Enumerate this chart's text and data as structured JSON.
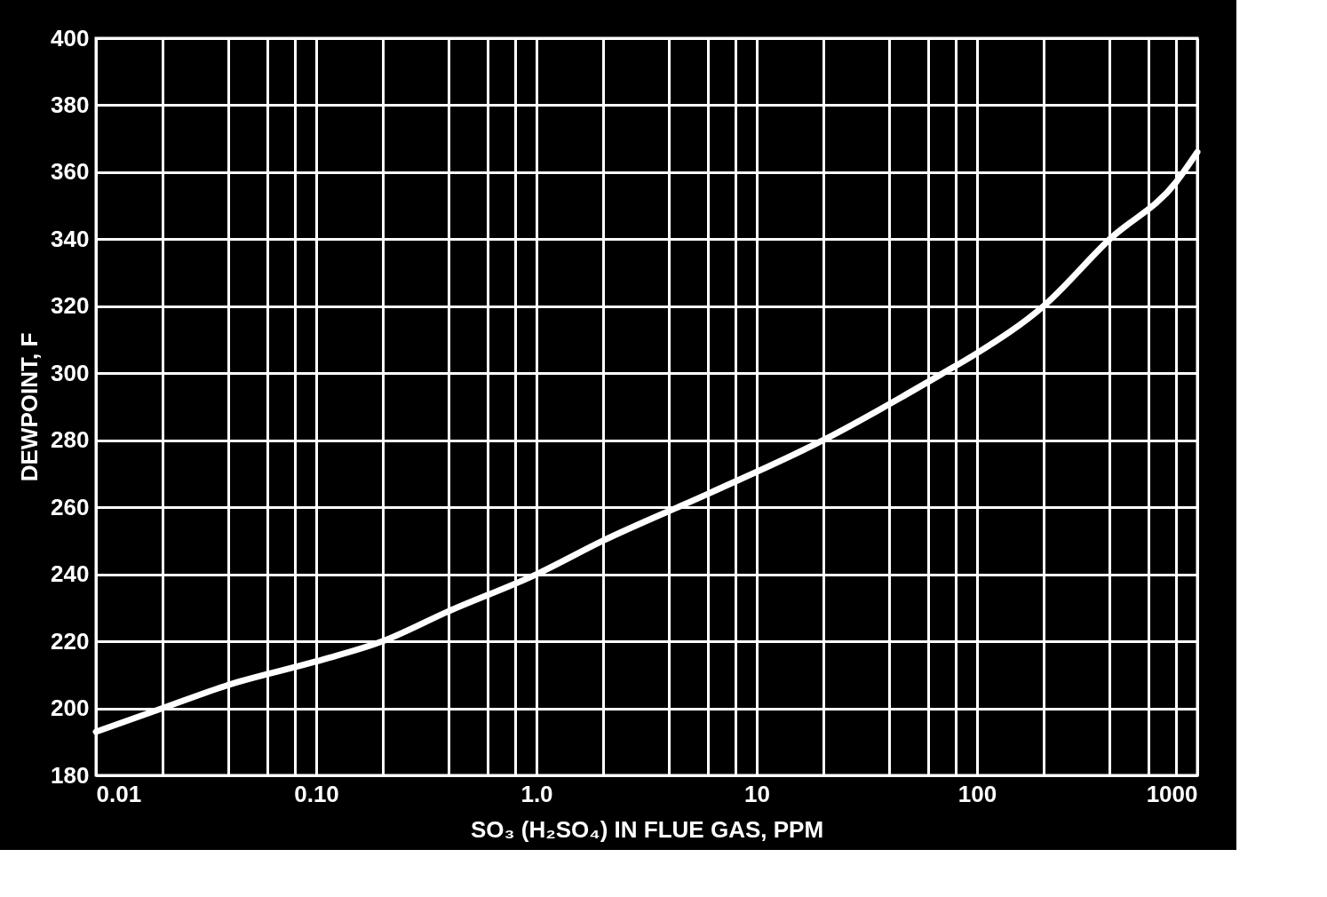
{
  "chart_data": {
    "type": "line",
    "xlabel": "SO₃ (H₂SO₄) IN FLUE GAS, PPM",
    "ylabel": "DEWPOINT, F",
    "log": "x",
    "grid": true,
    "marker": "none",
    "line_style": "solid",
    "xlim": [
      0.01,
      1000
    ],
    "xticks": [
      0.01,
      {
        "value": 0.02,
        "label": null
      },
      {
        "value": 0.04,
        "label": null
      },
      {
        "value": 0.06,
        "label": null
      },
      {
        "value": 0.08,
        "label": null
      },
      {
        "value": 0.1,
        "label": "0.10"
      },
      {
        "value": 0.2,
        "label": null
      },
      {
        "value": 0.4,
        "label": null
      },
      {
        "value": 0.6,
        "label": null
      },
      {
        "value": 0.8,
        "label": null
      },
      {
        "value": 1,
        "label": "1.0"
      },
      {
        "value": 2,
        "label": null
      },
      {
        "value": 4,
        "label": null
      },
      {
        "value": 6,
        "label": null
      },
      {
        "value": 8,
        "label": null
      },
      10,
      {
        "value": 20,
        "label": null
      },
      {
        "value": 40,
        "label": null
      },
      {
        "value": 60,
        "label": null
      },
      {
        "value": 80,
        "label": null
      },
      100,
      {
        "value": 200,
        "label": null
      },
      {
        "value": 400,
        "label": null
      },
      {
        "value": 600,
        "label": null
      },
      {
        "value": 800,
        "label": null
      },
      1000
    ],
    "ylim": [
      180,
      400
    ],
    "yticks": [
      180,
      200,
      220,
      240,
      260,
      280,
      300,
      320,
      340,
      360,
      380,
      400
    ],
    "series": [
      {
        "color": "#ffffff",
        "x": [
          0.01,
          0.02,
          0.04,
          0.1,
          0.2,
          0.4,
          1,
          2,
          6,
          20,
          70,
          100,
          200,
          400,
          800,
          1000
        ],
        "values": [
          193,
          200,
          207,
          214,
          220,
          229,
          240,
          250,
          264,
          280,
          300,
          306,
          320,
          340,
          357,
          366
        ]
      }
    ]
  }
}
